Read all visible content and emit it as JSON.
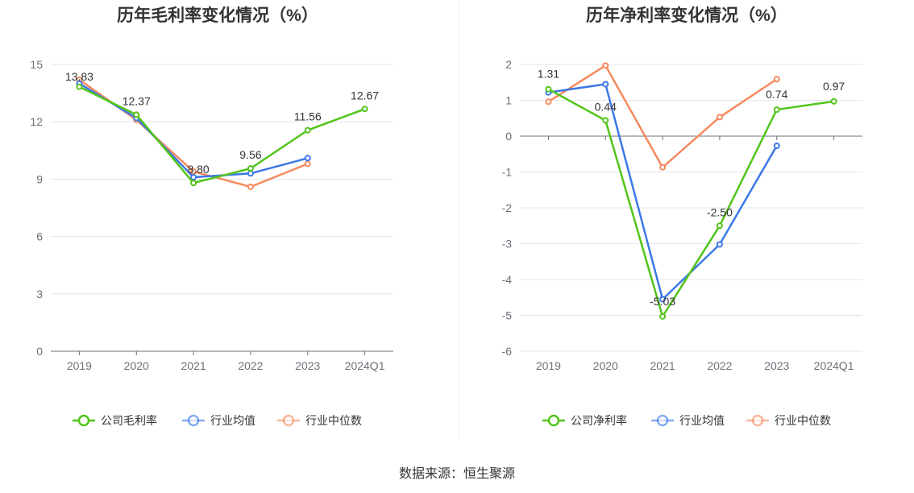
{
  "source": "数据来源：恒生聚源",
  "colors": {
    "company": "#52c41a",
    "avg": "#3b78e7",
    "median": "#f5895e"
  },
  "chart_data": [
    {
      "type": "line",
      "title": "历年毛利率变化情况（%）",
      "categories": [
        "2019",
        "2020",
        "2021",
        "2022",
        "2023",
        "2024Q1"
      ],
      "ylim": [
        0,
        15
      ],
      "yticks": [
        0,
        3,
        6,
        9,
        12,
        15
      ],
      "grid": true,
      "legend_position": "bottom",
      "series": [
        {
          "key": "company",
          "name": "公司毛利率",
          "values": [
            13.83,
            12.37,
            8.8,
            9.56,
            11.56,
            12.67
          ],
          "labels": [
            "13.83",
            "12.37",
            "8.80",
            "9.56",
            "11.56",
            "12.67"
          ]
        },
        {
          "key": "avg",
          "name": "行业均值",
          "values": [
            14.0,
            12.2,
            9.1,
            9.3,
            10.1,
            null
          ]
        },
        {
          "key": "median",
          "name": "行业中位数",
          "values": [
            14.2,
            12.1,
            9.4,
            8.6,
            9.8,
            null
          ]
        }
      ]
    },
    {
      "type": "line",
      "title": "历年净利率变化情况（%）",
      "categories": [
        "2019",
        "2020",
        "2021",
        "2022",
        "2023",
        "2024Q1"
      ],
      "ylim": [
        -6,
        2
      ],
      "yticks": [
        -6,
        -5,
        -4,
        -3,
        -2,
        -1,
        0,
        1,
        2
      ],
      "grid": true,
      "legend_position": "bottom",
      "series": [
        {
          "key": "company",
          "name": "公司净利率",
          "values": [
            1.31,
            0.44,
            -5.03,
            -2.5,
            0.74,
            0.97
          ],
          "labels": [
            "1.31",
            "0.44",
            "-5.03",
            "-2.50",
            "0.74",
            "0.97"
          ]
        },
        {
          "key": "avg",
          "name": "行业均值",
          "values": [
            1.22,
            1.45,
            -4.55,
            -3.02,
            -0.27,
            null
          ]
        },
        {
          "key": "median",
          "name": "行业中位数",
          "values": [
            0.96,
            1.97,
            -0.87,
            0.53,
            1.59,
            null
          ]
        }
      ]
    }
  ]
}
